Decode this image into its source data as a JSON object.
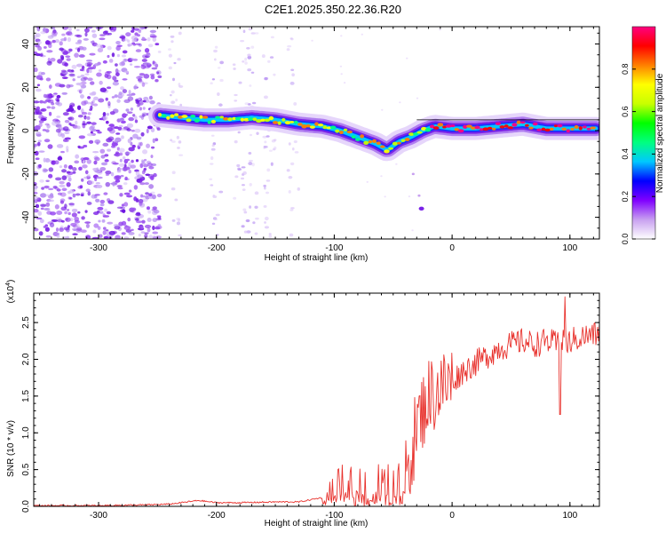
{
  "title": "C2E1.2025.350.22.36.R20",
  "chart_data": [
    {
      "type": "heatmap",
      "panel": "spectrogram",
      "xlabel": "Height of straight line (km)",
      "ylabel": "Frequency (Hz)",
      "xlim": [
        -355,
        125
      ],
      "ylim": [
        -50,
        48
      ],
      "xticks": [
        "-300",
        "-200",
        "-100",
        "0",
        "100"
      ],
      "yticks": [
        "-40",
        "-20",
        "0",
        "20",
        "40"
      ],
      "ridge": {
        "description": "dominant frequency vs height",
        "x": [
          -248,
          -230,
          -210,
          -190,
          -170,
          -150,
          -130,
          -110,
          -95,
          -80,
          -65,
          -55,
          -50,
          -45,
          -35,
          -25,
          -15,
          0,
          20,
          40,
          60,
          80,
          100,
          122
        ],
        "y": [
          7,
          6,
          5,
          5,
          6,
          5,
          3,
          2,
          0,
          -3,
          -6,
          -9,
          -7,
          -5,
          -3,
          0,
          2,
          1,
          1,
          2,
          3,
          1,
          1,
          1
        ]
      },
      "streak": {
        "x": [
          -33,
          -28,
          -26
        ],
        "y": [
          -20,
          -30,
          -36
        ]
      },
      "colorbar": {
        "label": "Normalized spectral amplitude",
        "ticks": [
          "0.0",
          "0.2",
          "0.4",
          "0.6",
          "0.8"
        ],
        "range": [
          0,
          1
        ],
        "colors": [
          "#ffffff",
          "#c8a0f0",
          "#8000ff",
          "#0000ff",
          "#00c8ff",
          "#00ff80",
          "#00ff00",
          "#c8ff00",
          "#ffff00",
          "#ff8000",
          "#ff0000",
          "#ff0080"
        ]
      }
    },
    {
      "type": "line",
      "panel": "snr",
      "xlabel": "Height of straight line (km)",
      "ylabel": "SNR (10 * v/v)",
      "scale_label": "(x10",
      "scale_exp": "4",
      "scale_close": ")",
      "xlim": [
        -355,
        125
      ],
      "ylim": [
        0,
        2.9
      ],
      "xticks": [
        "-300",
        "-200",
        "-100",
        "0",
        "100"
      ],
      "yticks": [
        "0.0",
        "0.5",
        "1.0",
        "1.5",
        "2.0",
        "2.5"
      ],
      "series": [
        {
          "name": "SNR",
          "color": "#e8312c",
          "x": [
            -355,
            -300,
            -260,
            -240,
            -225,
            -215,
            -200,
            -180,
            -150,
            -130,
            -110,
            -100,
            -90,
            -80,
            -70,
            -60,
            -50,
            -40,
            -35,
            -30,
            -20,
            -10,
            0,
            10,
            20,
            30,
            40,
            50,
            60,
            70,
            80,
            90,
            100,
            110,
            125
          ],
          "y": [
            0.01,
            0.01,
            0.02,
            0.03,
            0.06,
            0.08,
            0.05,
            0.05,
            0.06,
            0.06,
            0.12,
            0.25,
            0.32,
            0.35,
            0.33,
            0.32,
            0.3,
            0.35,
            0.7,
            1.1,
            1.5,
            1.6,
            1.7,
            1.85,
            1.95,
            2.05,
            2.15,
            2.2,
            2.25,
            2.2,
            2.25,
            2.2,
            2.25,
            2.3,
            2.35
          ]
        }
      ]
    }
  ]
}
